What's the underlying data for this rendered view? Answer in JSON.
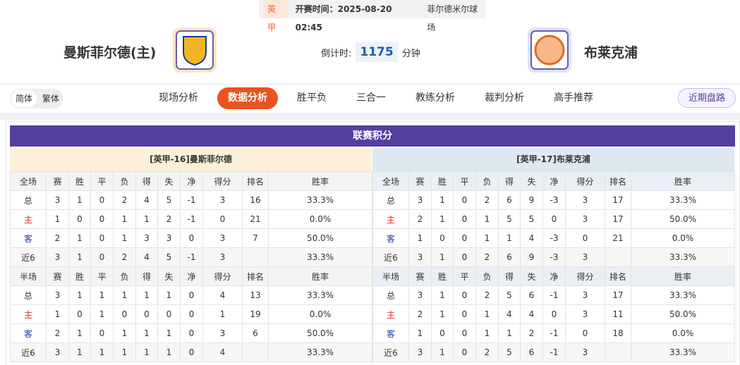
{
  "header": {
    "league": "英甲",
    "kickoff": "开赛时间：2025-08-20 02:45",
    "venue": "菲尔德米尔球场"
  },
  "match": {
    "home": "曼斯菲尔德(主)",
    "away": "布莱克浦",
    "countdown_label": "倒计时:",
    "countdown": "1175",
    "countdown_unit": "分钟"
  },
  "lang": [
    "简体",
    "繁体"
  ],
  "nav": [
    "现场分析",
    "数据分析",
    "胜平负",
    "三合一",
    "教练分析",
    "裁判分析",
    "高手推荐"
  ],
  "nav_active": 1,
  "recent_button": "近期盘路",
  "standings": {
    "title": "联赛积分",
    "teams": [
      {
        "name": "[英甲-16]曼斯菲尔德",
        "tables": [
          {
            "header": [
              "全场",
              "赛",
              "胜",
              "平",
              "负",
              "得",
              "失",
              "净",
              "得分",
              "排名",
              "胜率"
            ],
            "rows": [
              [
                "总",
                "3",
                "1",
                "0",
                "2",
                "4",
                "5",
                "-1",
                "3",
                "16",
                "33.3%"
              ],
              [
                "主",
                "1",
                "0",
                "0",
                "1",
                "1",
                "2",
                "-1",
                "0",
                "21",
                "0.0%"
              ],
              [
                "客",
                "2",
                "1",
                "0",
                "1",
                "3",
                "3",
                "0",
                "3",
                "7",
                "50.0%"
              ],
              [
                "近6",
                "3",
                "1",
                "0",
                "2",
                "4",
                "5",
                "-1",
                "3",
                null,
                "33.3%"
              ]
            ]
          },
          {
            "header": [
              "半场",
              "赛",
              "胜",
              "平",
              "负",
              "得",
              "失",
              "净",
              "得分",
              "排名",
              "胜率"
            ],
            "rows": [
              [
                "总",
                "3",
                "1",
                "1",
                "1",
                "1",
                "1",
                "0",
                "4",
                "13",
                "33.3%"
              ],
              [
                "主",
                "1",
                "0",
                "1",
                "0",
                "0",
                "0",
                "0",
                "1",
                "19",
                "0.0%"
              ],
              [
                "客",
                "2",
                "1",
                "0",
                "1",
                "1",
                "1",
                "0",
                "3",
                "6",
                "50.0%"
              ],
              [
                "近6",
                "3",
                "1",
                "1",
                "1",
                "1",
                "1",
                "0",
                "4",
                null,
                "33.3%"
              ]
            ]
          }
        ]
      },
      {
        "name": "[英甲-17]布莱克浦",
        "tables": [
          {
            "header": [
              "全场",
              "赛",
              "胜",
              "平",
              "负",
              "得",
              "失",
              "净",
              "得分",
              "排名",
              "胜率"
            ],
            "rows": [
              [
                "总",
                "3",
                "1",
                "0",
                "2",
                "6",
                "9",
                "-3",
                "3",
                "17",
                "33.3%"
              ],
              [
                "主",
                "2",
                "1",
                "0",
                "1",
                "5",
                "5",
                "0",
                "3",
                "17",
                "50.0%"
              ],
              [
                "客",
                "1",
                "0",
                "0",
                "1",
                "1",
                "4",
                "-3",
                "0",
                "21",
                "0.0%"
              ],
              [
                "近6",
                "3",
                "1",
                "0",
                "2",
                "6",
                "9",
                "-3",
                "3",
                null,
                "33.3%"
              ]
            ]
          },
          {
            "header": [
              "半场",
              "赛",
              "胜",
              "平",
              "负",
              "得",
              "失",
              "净",
              "得分",
              "排名",
              "胜率"
            ],
            "rows": [
              [
                "总",
                "3",
                "1",
                "0",
                "2",
                "5",
                "6",
                "-1",
                "3",
                "17",
                "33.3%"
              ],
              [
                "主",
                "2",
                "1",
                "0",
                "1",
                "4",
                "4",
                "0",
                "3",
                "11",
                "50.0%"
              ],
              [
                "客",
                "1",
                "0",
                "0",
                "1",
                "1",
                "2",
                "-1",
                "0",
                "18",
                "0.0%"
              ],
              [
                "近6",
                "3",
                "1",
                "0",
                "2",
                "5",
                "6",
                "-1",
                "3",
                null,
                "33.3%"
              ]
            ]
          }
        ]
      }
    ]
  }
}
